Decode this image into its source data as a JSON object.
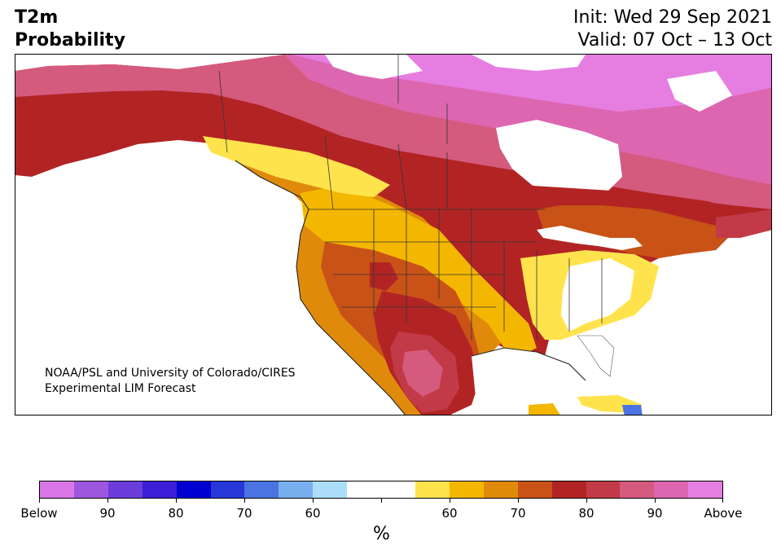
{
  "header": {
    "title_line1": "T2m",
    "title_line2": "Probability",
    "init_label": "Init: Wed 29 Sep 2021",
    "valid_label": "Valid: 07 Oct – 13 Oct"
  },
  "map": {
    "region": "North America",
    "variable": "2-meter temperature probability",
    "credit_line1": "NOAA/PSL and University of Colorado/CIRES",
    "credit_line2": "Experimental LIM Forecast"
  },
  "colorbar": {
    "unit_label": "%",
    "colors": [
      "#d977e8",
      "#9d57df",
      "#6b3ddb",
      "#3c1fd6",
      "#0000d0",
      "#2838d8",
      "#4b73e2",
      "#77afef",
      "#acdef9",
      "#ffffff",
      "#ffffff",
      "#ffe34d",
      "#f3b700",
      "#e08a0c",
      "#c95217",
      "#b22424",
      "#c23a47",
      "#d45a7e",
      "#dd66b0",
      "#e67ee2"
    ],
    "tick_labels": [
      "Below",
      "90",
      "80",
      "70",
      "60",
      "",
      "60",
      "70",
      "80",
      "90",
      "Above"
    ]
  }
}
